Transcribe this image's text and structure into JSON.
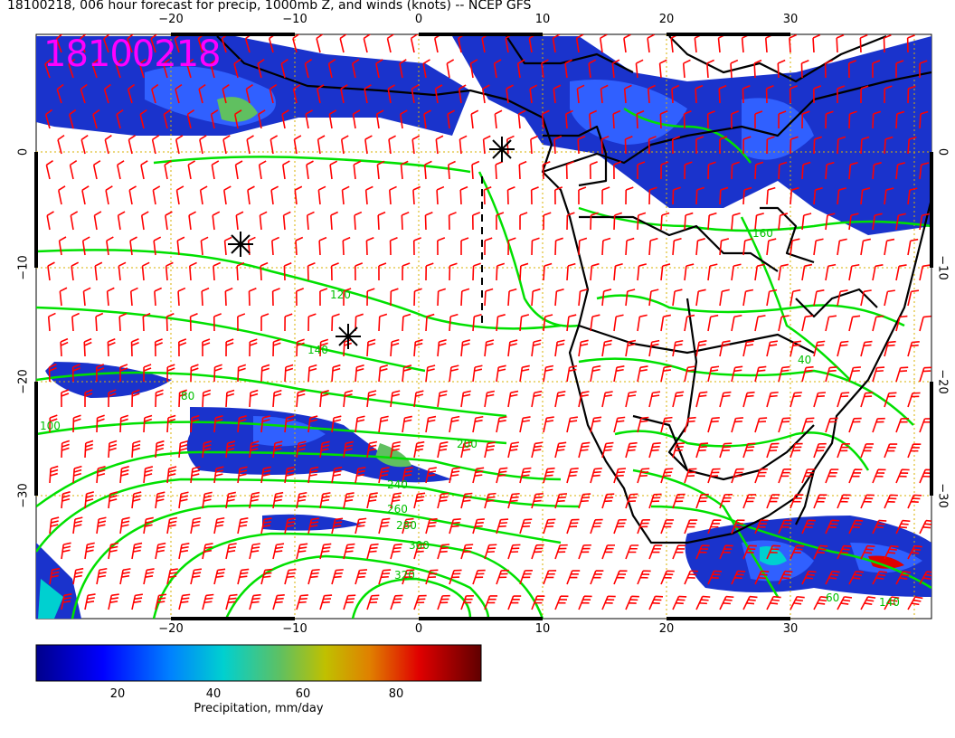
{
  "title": "18100218, 006 hour forecast for precip, 1000mb Z, and winds (knots) -- NCEP GFS",
  "stamp": "18100218",
  "lon_labels": [
    "−20",
    "−10",
    "0",
    "10",
    "20",
    "30"
  ],
  "lat_labels": [
    "0",
    "−10",
    "−20",
    "−30"
  ],
  "contour_labels": [
    "120",
    "140",
    "80",
    "100",
    "200",
    "240",
    "260",
    "280",
    "300",
    "320",
    "160",
    "40",
    "60",
    "140"
  ],
  "colorbar": {
    "ticks": [
      "20",
      "40",
      "60",
      "80"
    ],
    "title": "Precipitation, mm/day",
    "colors": [
      "#00008b",
      "#0000ff",
      "#0080ff",
      "#00d0d0",
      "#60c060",
      "#c0c000",
      "#e08000",
      "#e00000",
      "#600000"
    ]
  },
  "colors": {
    "contour": "#00e000",
    "barb": "#ff0000",
    "gridline": "#d8b000",
    "magenta": "#ff00ff"
  }
}
